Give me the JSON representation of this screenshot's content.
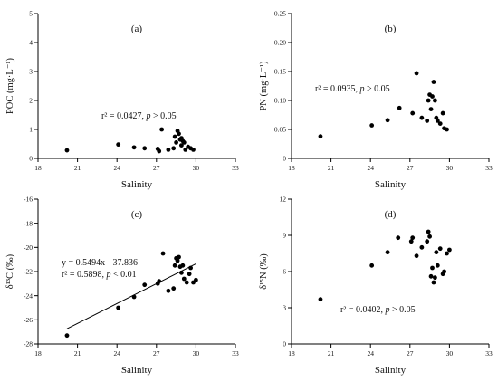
{
  "chart_data": [
    {
      "type": "scatter",
      "panel_label": "(a)",
      "xlabel": "Salinity",
      "ylabel": "POC (mg·L⁻¹)",
      "xlim": [
        18,
        33
      ],
      "ylim": [
        0,
        5
      ],
      "xticks": [
        18,
        21,
        24,
        27,
        30,
        33
      ],
      "yticks": [
        0,
        1,
        2,
        3,
        4,
        5
      ],
      "annotations": [
        "r² = 0.0427, p > 0.05"
      ],
      "points": [
        [
          20.2,
          0.28
        ],
        [
          24.1,
          0.48
        ],
        [
          25.3,
          0.38
        ],
        [
          26.1,
          0.35
        ],
        [
          27.1,
          0.33
        ],
        [
          27.2,
          0.25
        ],
        [
          27.4,
          1.0
        ],
        [
          27.9,
          0.3
        ],
        [
          28.3,
          0.35
        ],
        [
          28.4,
          0.75
        ],
        [
          28.5,
          0.55
        ],
        [
          28.6,
          0.95
        ],
        [
          28.7,
          0.85
        ],
        [
          28.8,
          0.65
        ],
        [
          28.9,
          0.7
        ],
        [
          29.0,
          0.6
        ],
        [
          29.1,
          0.55
        ],
        [
          29.2,
          0.3
        ],
        [
          29.4,
          0.4
        ],
        [
          29.6,
          0.35
        ],
        [
          29.8,
          0.3
        ],
        [
          28.9,
          0.45
        ]
      ]
    },
    {
      "type": "scatter",
      "panel_label": "(b)",
      "xlabel": "Salinity",
      "ylabel": "PN (mg·L⁻¹)",
      "xlim": [
        18,
        33
      ],
      "ylim": [
        0,
        0.25
      ],
      "xticks": [
        18,
        21,
        24,
        27,
        30,
        33
      ],
      "yticks": [
        0,
        0.05,
        0.1,
        0.15,
        0.2,
        0.25
      ],
      "ytick_labels": [
        "0",
        "0.05",
        "0.10",
        "0.15",
        "0.20",
        "0.25"
      ],
      "annotations": [
        "r² = 0.0935, p > 0.05"
      ],
      "points": [
        [
          20.2,
          0.038
        ],
        [
          24.1,
          0.057
        ],
        [
          25.3,
          0.066
        ],
        [
          26.2,
          0.087
        ],
        [
          27.2,
          0.078
        ],
        [
          27.5,
          0.147
        ],
        [
          27.9,
          0.07
        ],
        [
          28.3,
          0.065
        ],
        [
          28.4,
          0.1
        ],
        [
          28.5,
          0.11
        ],
        [
          28.7,
          0.107
        ],
        [
          28.8,
          0.132
        ],
        [
          28.9,
          0.1
        ],
        [
          29.0,
          0.07
        ],
        [
          29.1,
          0.065
        ],
        [
          29.3,
          0.06
        ],
        [
          29.5,
          0.078
        ],
        [
          29.6,
          0.052
        ],
        [
          29.8,
          0.05
        ],
        [
          28.6,
          0.085
        ]
      ]
    },
    {
      "type": "scatter",
      "panel_label": "(c)",
      "xlabel": "Salinity",
      "ylabel": "δ¹³C (‰)",
      "xlim": [
        18,
        33
      ],
      "ylim": [
        -28,
        -16
      ],
      "xticks": [
        18,
        21,
        24,
        27,
        30,
        33
      ],
      "yticks": [
        -28,
        -26,
        -24,
        -22,
        -20,
        -18,
        -16
      ],
      "annotations": [
        "y = 0.5494x - 37.836",
        "r² = 0.5898, p < 0.01"
      ],
      "fit": {
        "slope": 0.5494,
        "intercept": -37.836,
        "x_range": [
          20.2,
          30.0
        ]
      },
      "points": [
        [
          20.2,
          -27.3
        ],
        [
          24.1,
          -25.0
        ],
        [
          25.3,
          -24.1
        ],
        [
          26.1,
          -23.1
        ],
        [
          27.1,
          -23.0
        ],
        [
          27.2,
          -22.8
        ],
        [
          27.5,
          -20.5
        ],
        [
          27.9,
          -23.6
        ],
        [
          28.3,
          -23.4
        ],
        [
          28.4,
          -21.5
        ],
        [
          28.5,
          -20.9
        ],
        [
          28.6,
          -21.1
        ],
        [
          28.7,
          -20.8
        ],
        [
          28.8,
          -21.6
        ],
        [
          28.9,
          -22.1
        ],
        [
          29.0,
          -21.5
        ],
        [
          29.1,
          -22.6
        ],
        [
          29.3,
          -22.9
        ],
        [
          29.5,
          -22.2
        ],
        [
          29.6,
          -21.7
        ],
        [
          29.8,
          -22.9
        ],
        [
          30.0,
          -22.7
        ]
      ]
    },
    {
      "type": "scatter",
      "panel_label": "(d)",
      "xlabel": "Salinity",
      "ylabel": "δ¹⁵N (‰)",
      "xlim": [
        18,
        33
      ],
      "ylim": [
        0,
        12
      ],
      "xticks": [
        18,
        21,
        24,
        27,
        30,
        33
      ],
      "yticks": [
        0,
        3,
        6,
        9,
        12
      ],
      "annotations": [
        "r² = 0.0402, p > 0.05"
      ],
      "points": [
        [
          20.2,
          3.7
        ],
        [
          24.1,
          6.5
        ],
        [
          25.3,
          7.6
        ],
        [
          26.1,
          8.8
        ],
        [
          27.1,
          8.5
        ],
        [
          27.2,
          8.8
        ],
        [
          27.5,
          7.3
        ],
        [
          27.9,
          8.0
        ],
        [
          28.3,
          8.5
        ],
        [
          28.4,
          9.3
        ],
        [
          28.5,
          8.9
        ],
        [
          28.6,
          5.6
        ],
        [
          28.7,
          6.3
        ],
        [
          28.8,
          5.1
        ],
        [
          28.9,
          5.5
        ],
        [
          29.0,
          7.6
        ],
        [
          29.1,
          6.5
        ],
        [
          29.3,
          7.9
        ],
        [
          29.5,
          5.8
        ],
        [
          29.6,
          6.0
        ],
        [
          29.8,
          7.5
        ],
        [
          30.0,
          7.8
        ]
      ]
    }
  ]
}
